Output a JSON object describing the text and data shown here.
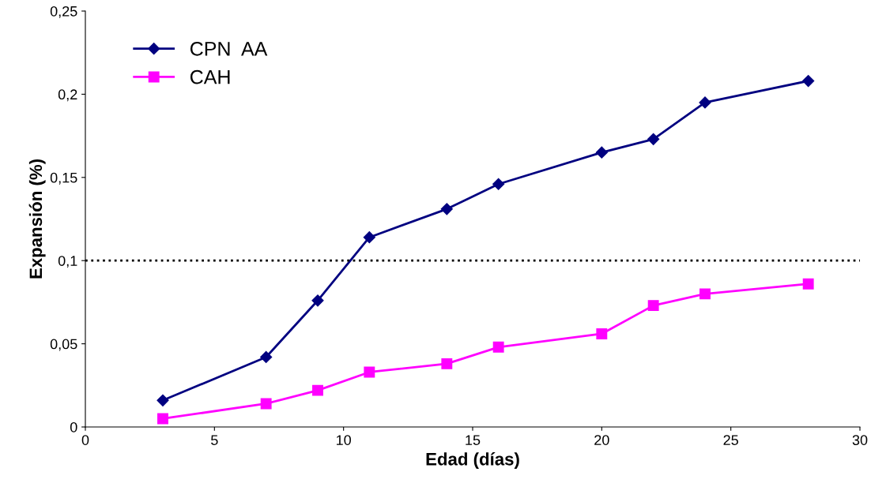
{
  "chart_data": {
    "type": "line",
    "xlabel": "Edad (días)",
    "ylabel": "Expansión (%)",
    "xlim": [
      0,
      30
    ],
    "xticks": [
      0,
      5,
      10,
      15,
      20,
      25,
      30
    ],
    "ylim": [
      0,
      0.25
    ],
    "yticks": [
      {
        "value": 0,
        "label": "0"
      },
      {
        "value": 0.05,
        "label": "0,05"
      },
      {
        "value": 0.1,
        "label": "0,1"
      },
      {
        "value": 0.15,
        "label": "0,15"
      },
      {
        "value": 0.2,
        "label": "0,2"
      },
      {
        "value": 0.25,
        "label": "0,25"
      }
    ],
    "x": [
      3,
      7,
      9,
      11,
      14,
      16,
      20,
      22,
      24,
      28
    ],
    "series": [
      {
        "name": "CPN  AA",
        "color": "#000080",
        "marker": "diamond",
        "values": [
          0.016,
          0.042,
          0.076,
          0.114,
          0.131,
          0.146,
          0.165,
          0.173,
          0.195,
          0.208
        ]
      },
      {
        "name": "CAH",
        "color": "#ff00ff",
        "marker": "square",
        "values": [
          0.005,
          0.014,
          0.022,
          0.033,
          0.038,
          0.048,
          0.056,
          0.073,
          0.08,
          0.086
        ]
      }
    ],
    "ref_lines": [
      {
        "axis": "y",
        "value": 0.1,
        "color": "#000000",
        "line_style": "dotted"
      }
    ],
    "grid": false,
    "legend": "top left",
    "line_style": "solid"
  }
}
